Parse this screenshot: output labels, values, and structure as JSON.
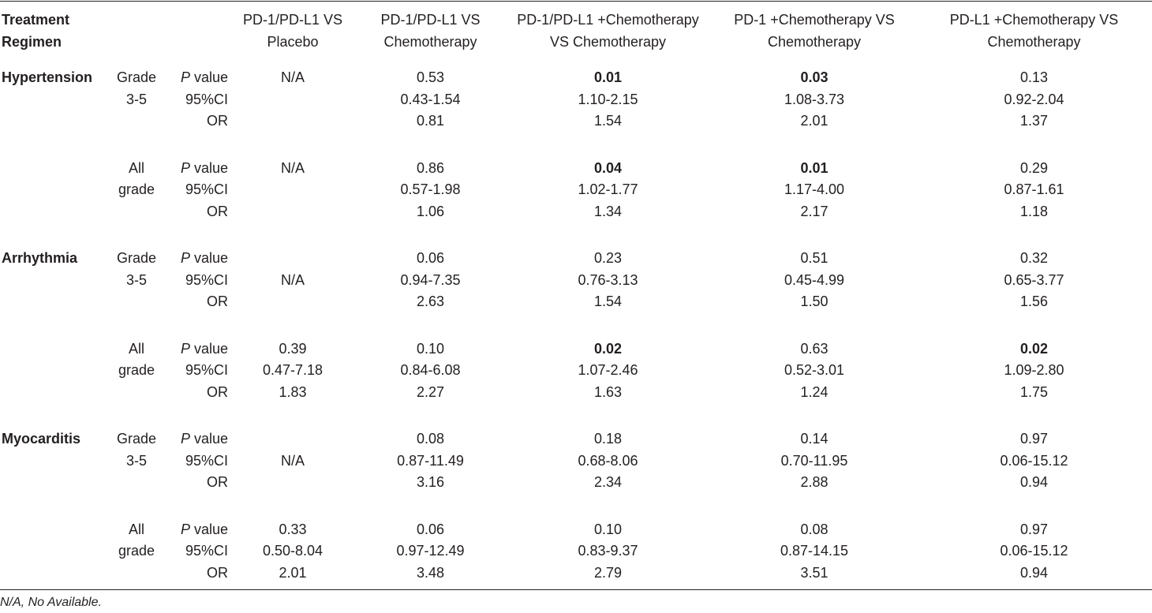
{
  "header": {
    "regimen_line1": "Treatment",
    "regimen_line2": "Regimen",
    "columns": [
      [
        "PD-1/PD-L1 VS",
        "Placebo"
      ],
      [
        "PD-1/PD-L1 VS",
        "Chemotherapy"
      ],
      [
        "PD-1/PD-L1 +Chemotherapy",
        "VS Chemotherapy"
      ],
      [
        "PD-1 +Chemotherapy VS",
        "Chemotherapy"
      ],
      [
        "PD-L1 +Chemotherapy VS",
        "Chemotherapy"
      ]
    ]
  },
  "stats": {
    "p_italic": "P",
    "p_rest": " value",
    "ci": "95%CI",
    "or": "OR"
  },
  "rows": [
    {
      "category": "Hypertension",
      "grade": [
        "Grade",
        "3-5"
      ],
      "cells": [
        {
          "lines": [
            "N/A",
            "",
            ""
          ],
          "bold": false
        },
        {
          "lines": [
            "0.53",
            "0.43-1.54",
            "0.81"
          ],
          "bold": false
        },
        {
          "lines": [
            "0.01",
            "1.10-2.15",
            "1.54"
          ],
          "bold": true
        },
        {
          "lines": [
            "0.03",
            "1.08-3.73",
            "2.01"
          ],
          "bold": true
        },
        {
          "lines": [
            "0.13",
            "0.92-2.04",
            "1.37"
          ],
          "bold": false
        }
      ]
    },
    {
      "category": "",
      "grade": [
        "All",
        "grade"
      ],
      "cells": [
        {
          "lines": [
            "N/A",
            "",
            ""
          ],
          "bold": false
        },
        {
          "lines": [
            "0.86",
            "0.57-1.98",
            "1.06"
          ],
          "bold": false
        },
        {
          "lines": [
            "0.04",
            "1.02-1.77",
            "1.34"
          ],
          "bold": true
        },
        {
          "lines": [
            "0.01",
            "1.17-4.00",
            "2.17"
          ],
          "bold": true
        },
        {
          "lines": [
            "0.29",
            "0.87-1.61",
            "1.18"
          ],
          "bold": false
        }
      ]
    },
    {
      "category": "Arrhythmia",
      "grade": [
        "Grade",
        "3-5"
      ],
      "cells": [
        {
          "lines": [
            "",
            "N/A",
            ""
          ],
          "bold": false
        },
        {
          "lines": [
            "0.06",
            "0.94-7.35",
            "2.63"
          ],
          "bold": false
        },
        {
          "lines": [
            "0.23",
            "0.76-3.13",
            "1.54"
          ],
          "bold": false
        },
        {
          "lines": [
            "0.51",
            "0.45-4.99",
            "1.50"
          ],
          "bold": false
        },
        {
          "lines": [
            "0.32",
            "0.65-3.77",
            "1.56"
          ],
          "bold": false
        }
      ]
    },
    {
      "category": "",
      "grade": [
        "All",
        "grade"
      ],
      "cells": [
        {
          "lines": [
            "0.39",
            "0.47-7.18",
            "1.83"
          ],
          "bold": false
        },
        {
          "lines": [
            "0.10",
            "0.84-6.08",
            "2.27"
          ],
          "bold": false
        },
        {
          "lines": [
            "0.02",
            "1.07-2.46",
            "1.63"
          ],
          "bold": true
        },
        {
          "lines": [
            "0.63",
            "0.52-3.01",
            "1.24"
          ],
          "bold": false
        },
        {
          "lines": [
            "0.02",
            "1.09-2.80",
            "1.75"
          ],
          "bold": true
        }
      ]
    },
    {
      "category": "Myocarditis",
      "grade": [
        "Grade",
        "3-5"
      ],
      "cells": [
        {
          "lines": [
            "",
            "N/A",
            ""
          ],
          "bold": false
        },
        {
          "lines": [
            "0.08",
            "0.87-11.49",
            "3.16"
          ],
          "bold": false
        },
        {
          "lines": [
            "0.18",
            "0.68-8.06",
            "2.34"
          ],
          "bold": false
        },
        {
          "lines": [
            "0.14",
            "0.70-11.95",
            "2.88"
          ],
          "bold": false
        },
        {
          "lines": [
            "0.97",
            "0.06-15.12",
            "0.94"
          ],
          "bold": false
        }
      ]
    },
    {
      "category": "",
      "grade": [
        "All",
        "grade"
      ],
      "cells": [
        {
          "lines": [
            "0.33",
            "0.50-8.04",
            "2.01"
          ],
          "bold": false
        },
        {
          "lines": [
            "0.06",
            "0.97-12.49",
            "3.48"
          ],
          "bold": false
        },
        {
          "lines": [
            "0.10",
            "0.83-9.37",
            "2.79"
          ],
          "bold": false
        },
        {
          "lines": [
            "0.08",
            "0.87-14.15",
            "3.51"
          ],
          "bold": false
        },
        {
          "lines": [
            "0.97",
            "0.06-15.12",
            "0.94"
          ],
          "bold": false
        }
      ]
    }
  ],
  "footnote": "N/A, No Available."
}
